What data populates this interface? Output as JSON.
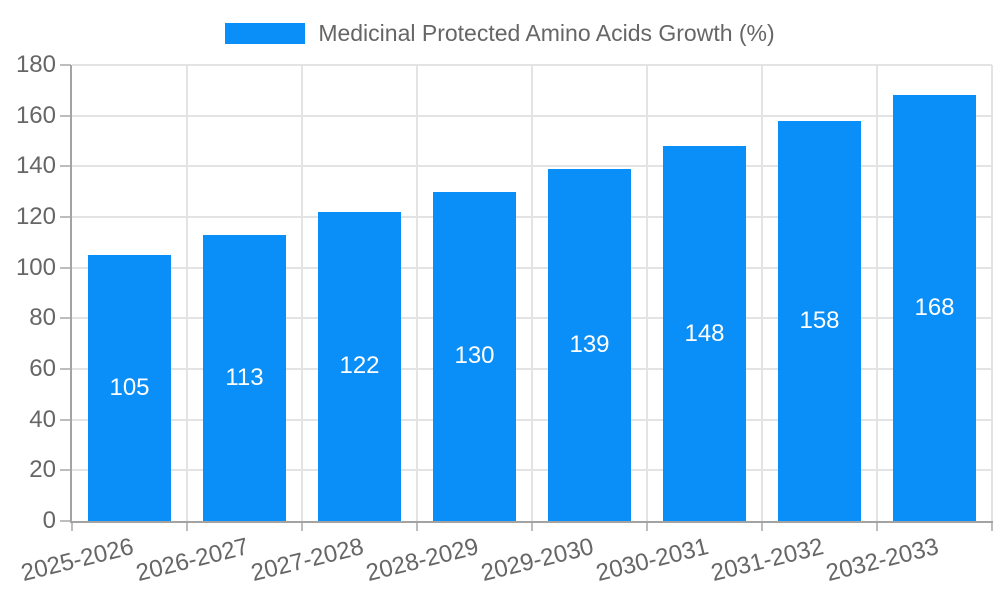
{
  "chart_data": {
    "type": "bar",
    "title": "Medicinal Protected Amino Acids Growth (%)",
    "legend": {
      "label": "Medicinal Protected Amino Acids Growth (%)",
      "position": "top"
    },
    "categories": [
      "2025-2026",
      "2026-2027",
      "2027-2028",
      "2028-2029",
      "2029-2030",
      "2030-2031",
      "2031-2032",
      "2032-2033"
    ],
    "values": [
      105,
      113,
      122,
      130,
      139,
      148,
      158,
      168
    ],
    "value_labels": [
      "105",
      "113",
      "122",
      "130",
      "139",
      "148",
      "158",
      "168"
    ],
    "ylim": [
      0,
      180
    ],
    "ytick_step": 20,
    "yticks": [
      "0",
      "20",
      "40",
      "60",
      "80",
      "100",
      "120",
      "140",
      "160",
      "180"
    ],
    "grid": true,
    "x_label_rotation_deg": -14,
    "colors": {
      "bar": "#0a8ef8",
      "grid": "#e3e3e3",
      "axis": "#a3a3a3",
      "tick": "#bdbdbd",
      "tick_label": "#666666",
      "legend_label": "#666666",
      "value_label": "#ffffff",
      "background": "#ffffff"
    }
  }
}
